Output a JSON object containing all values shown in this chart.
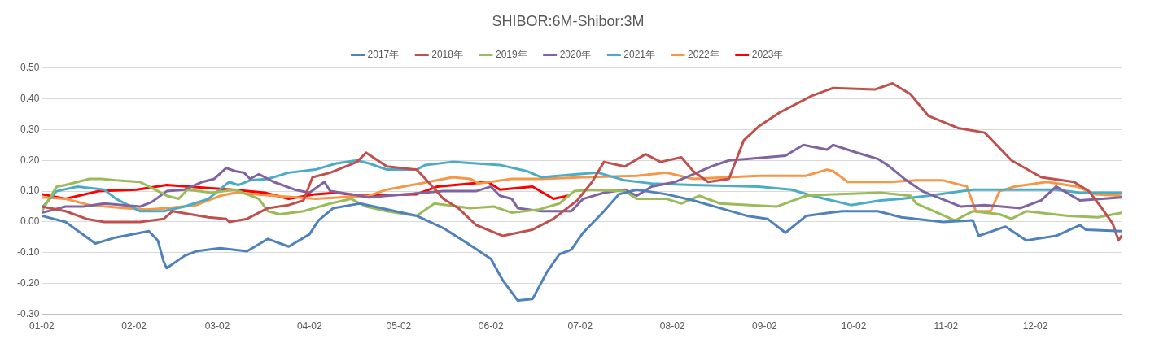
{
  "chart_data": {
    "type": "line",
    "title": "SHIBOR:6M-Shibor:3M",
    "legend": "top",
    "grid": "y",
    "marker": "none",
    "line_style": "solid",
    "xlim": [
      "--01-02",
      "--12-31"
    ],
    "xticks": [
      {
        "value": "--01-02",
        "label": "01-02"
      },
      {
        "value": "--02-02",
        "label": "02-02"
      },
      {
        "value": "--03-02",
        "label": "03-02"
      },
      {
        "value": "--04-02",
        "label": "04-02"
      },
      {
        "value": "--05-02",
        "label": "05-02"
      },
      {
        "value": "--06-02",
        "label": "06-02"
      },
      {
        "value": "--07-02",
        "label": "07-02"
      },
      {
        "value": "--08-02",
        "label": "08-02"
      },
      {
        "value": "--09-02",
        "label": "09-02"
      },
      {
        "value": "--10-02",
        "label": "10-02"
      },
      {
        "value": "--11-02",
        "label": "11-02"
      },
      {
        "value": "--12-02",
        "label": "12-02"
      }
    ],
    "ylim": [
      -0.3,
      0.5
    ],
    "yticks": [
      {
        "value": -0.3,
        "label": "-0.30"
      },
      {
        "value": -0.2,
        "label": "-0.20"
      },
      {
        "value": -0.1,
        "label": "-0.10"
      },
      {
        "value": 0,
        "label": "0.00"
      },
      {
        "value": 0.1,
        "label": "0.10"
      },
      {
        "value": 0.2,
        "label": "0.20"
      },
      {
        "value": 0.3,
        "label": "0.30"
      },
      {
        "value": 0.4,
        "label": "0.40"
      },
      {
        "value": 0.5,
        "label": "0.50"
      }
    ],
    "series": [
      {
        "name": "2017年",
        "color": "#4f81bd",
        "x": [
          "--01-02",
          "--01-10",
          "--01-20",
          "--01-27",
          "--02-07",
          "--02-10",
          "--02-12",
          "--02-13",
          "--02-19",
          "--02-23",
          "--03-03",
          "--03-12",
          "--03-19",
          "--03-26",
          "--04-02",
          "--04-05",
          "--04-10",
          "--04-16",
          "--04-19",
          "--05-08",
          "--05-17",
          "--05-26",
          "--06-02",
          "--06-06",
          "--06-11",
          "--06-16",
          "--06-21",
          "--06-25",
          "--06-29",
          "--07-03",
          "--07-10",
          "--07-15",
          "--07-21",
          "--07-31",
          "--08-09",
          "--08-18",
          "--08-27",
          "--09-03",
          "--09-09",
          "--09-16",
          "--09-28",
          "--10-10",
          "--10-18",
          "--11-01",
          "--11-11",
          "--11-13",
          "--11-22",
          "--11-29",
          "--12-09",
          "--12-17",
          "--12-19",
          "--12-31"
        ],
        "values": [
          0.02,
          0.0,
          -0.07,
          -0.05,
          -0.03,
          -0.06,
          -0.13,
          -0.15,
          -0.11,
          -0.095,
          -0.085,
          -0.095,
          -0.055,
          -0.08,
          -0.04,
          0.005,
          0.045,
          0.055,
          0.06,
          0.02,
          -0.02,
          -0.075,
          -0.12,
          -0.19,
          -0.255,
          -0.25,
          -0.16,
          -0.105,
          -0.09,
          -0.035,
          0.035,
          0.09,
          0.105,
          0.09,
          0.07,
          0.045,
          0.02,
          0.01,
          -0.035,
          0.02,
          0.035,
          0.035,
          0.015,
          0.0,
          0.005,
          -0.045,
          -0.015,
          -0.06,
          -0.045,
          -0.01,
          -0.025,
          -0.03
        ]
      },
      {
        "name": "2018年",
        "color": "#c0504d",
        "x": [
          "--01-02",
          "--01-10",
          "--01-17",
          "--01-23",
          "--02-04",
          "--02-12",
          "--02-15",
          "--02-27",
          "--03-05",
          "--03-06",
          "--03-12",
          "--03-19",
          "--03-26",
          "--03-31",
          "--04-03",
          "--04-09",
          "--04-18",
          "--04-21",
          "--04-28",
          "--05-08",
          "--05-11",
          "--05-17",
          "--05-22",
          "--05-28",
          "--06-06",
          "--06-16",
          "--06-23",
          "--07-01",
          "--07-06",
          "--07-10",
          "--07-17",
          "--07-24",
          "--07-29",
          "--08-05",
          "--08-09",
          "--08-14",
          "--08-21",
          "--08-26",
          "--08-31",
          "--09-07",
          "--09-18",
          "--09-25",
          "--10-09",
          "--10-15",
          "--10-21",
          "--10-27",
          "--11-06",
          "--11-15",
          "--11-24",
          "--12-04",
          "--12-15",
          "--12-20",
          "--12-24",
          "--12-28",
          "--12-30",
          "--12-31"
        ],
        "values": [
          0.05,
          0.035,
          0.01,
          0.0,
          0.0,
          0.01,
          0.035,
          0.015,
          0.01,
          0.0,
          0.01,
          0.045,
          0.055,
          0.07,
          0.145,
          0.16,
          0.195,
          0.225,
          0.18,
          0.17,
          0.14,
          0.075,
          0.045,
          -0.01,
          -0.045,
          -0.025,
          0.01,
          0.07,
          0.13,
          0.195,
          0.18,
          0.22,
          0.195,
          0.21,
          0.165,
          0.13,
          0.14,
          0.265,
          0.31,
          0.355,
          0.41,
          0.435,
          0.43,
          0.45,
          0.415,
          0.345,
          0.305,
          0.29,
          0.2,
          0.145,
          0.13,
          0.1,
          0.05,
          -0.005,
          -0.06,
          -0.045
        ]
      },
      {
        "name": "2019年",
        "color": "#9bbb59",
        "x": [
          "--01-02",
          "--01-07",
          "--01-10",
          "--01-18",
          "--01-22",
          "--01-27",
          "--02-04",
          "--02-09",
          "--02-13",
          "--02-17",
          "--02-20",
          "--02-28",
          "--03-08",
          "--03-16",
          "--03-19",
          "--03-23",
          "--03-31",
          "--04-09",
          "--04-16",
          "--04-21",
          "--04-28",
          "--05-08",
          "--05-14",
          "--05-26",
          "--06-03",
          "--06-09",
          "--06-18",
          "--06-25",
          "--06-30",
          "--07-06",
          "--07-17",
          "--07-21",
          "--07-31",
          "--08-05",
          "--08-11",
          "--08-18",
          "--08-28",
          "--09-06",
          "--09-16",
          "--09-25",
          "--10-11",
          "--10-21",
          "--10-23",
          "--11-05",
          "--11-11",
          "--11-20",
          "--11-24",
          "--11-29",
          "--12-13",
          "--12-23",
          "--12-31"
        ],
        "values": [
          0.035,
          0.115,
          0.12,
          0.14,
          0.14,
          0.135,
          0.13,
          0.105,
          0.085,
          0.075,
          0.105,
          0.095,
          0.105,
          0.075,
          0.035,
          0.025,
          0.035,
          0.06,
          0.075,
          0.05,
          0.035,
          0.02,
          0.06,
          0.045,
          0.05,
          0.03,
          0.04,
          0.06,
          0.1,
          0.105,
          0.1,
          0.075,
          0.075,
          0.06,
          0.085,
          0.06,
          0.055,
          0.05,
          0.085,
          0.09,
          0.095,
          0.085,
          0.06,
          0.005,
          0.035,
          0.025,
          0.01,
          0.035,
          0.02,
          0.015,
          0.03
        ]
      },
      {
        "name": "2020年",
        "color": "#8064a2",
        "x": [
          "--01-02",
          "--01-10",
          "--01-16",
          "--01-23",
          "--02-04",
          "--02-08",
          "--02-13",
          "--02-19",
          "--02-25",
          "--03-01",
          "--03-05",
          "--03-08",
          "--03-11",
          "--03-13",
          "--03-16",
          "--03-21",
          "--03-28",
          "--04-02",
          "--04-07",
          "--04-09",
          "--04-16",
          "--04-22",
          "--04-28",
          "--05-17",
          "--05-28",
          "--06-02",
          "--06-05",
          "--06-09",
          "--06-11",
          "--06-19",
          "--06-29",
          "--07-03",
          "--07-10",
          "--07-17",
          "--07-21",
          "--07-26",
          "--08-03",
          "--08-09",
          "--08-15",
          "--08-21",
          "--08-28",
          "--09-09",
          "--09-15",
          "--09-23",
          "--09-25",
          "--10-03",
          "--10-10",
          "--10-14",
          "--10-19",
          "--10-25",
          "--11-07",
          "--11-15",
          "--11-27",
          "--12-04",
          "--12-09",
          "--12-17",
          "--12-31"
        ],
        "values": [
          0.03,
          0.05,
          0.05,
          0.06,
          0.05,
          0.065,
          0.1,
          0.105,
          0.13,
          0.14,
          0.175,
          0.165,
          0.16,
          0.14,
          0.155,
          0.13,
          0.105,
          0.095,
          0.13,
          0.1,
          0.09,
          0.08,
          0.085,
          0.1,
          0.1,
          0.115,
          0.085,
          0.075,
          0.045,
          0.035,
          0.035,
          0.075,
          0.095,
          0.105,
          0.085,
          0.115,
          0.13,
          0.155,
          0.18,
          0.2,
          0.205,
          0.215,
          0.25,
          0.235,
          0.25,
          0.225,
          0.205,
          0.18,
          0.14,
          0.1,
          0.05,
          0.055,
          0.045,
          0.07,
          0.115,
          0.07,
          0.08
        ]
      },
      {
        "name": "2021年",
        "color": "#4bacc6",
        "x": [
          "--01-02",
          "--01-07",
          "--01-14",
          "--01-23",
          "--01-27",
          "--02-04",
          "--02-12",
          "--02-19",
          "--02-27",
          "--03-06",
          "--03-09",
          "--03-13",
          "--03-19",
          "--03-26",
          "--04-04",
          "--04-11",
          "--04-18",
          "--04-22",
          "--04-28",
          "--05-08",
          "--05-11",
          "--05-20",
          "--06-05",
          "--06-14",
          "--06-19",
          "--07-01",
          "--07-08",
          "--07-17",
          "--07-26",
          "--08-09",
          "--08-31",
          "--09-11",
          "--09-18",
          "--10-01",
          "--10-11",
          "--10-18",
          "--10-27",
          "--11-11",
          "--11-24",
          "--12-09",
          "--12-17",
          "--12-31"
        ],
        "values": [
          0.045,
          0.1,
          0.115,
          0.105,
          0.075,
          0.035,
          0.035,
          0.05,
          0.075,
          0.13,
          0.12,
          0.135,
          0.14,
          0.16,
          0.17,
          0.19,
          0.2,
          0.19,
          0.17,
          0.17,
          0.185,
          0.195,
          0.185,
          0.165,
          0.145,
          0.155,
          0.16,
          0.135,
          0.125,
          0.12,
          0.115,
          0.105,
          0.085,
          0.055,
          0.07,
          0.075,
          0.085,
          0.105,
          0.105,
          0.105,
          0.095,
          0.095
        ]
      },
      {
        "name": "2022年",
        "color": "#f79646",
        "x": [
          "--01-02",
          "--01-10",
          "--01-18",
          "--01-30",
          "--02-06",
          "--02-13",
          "--02-23",
          "--03-03",
          "--03-08",
          "--03-21",
          "--04-04",
          "--04-22",
          "--04-28",
          "--05-12",
          "--05-20",
          "--05-26",
          "--05-29",
          "--06-09",
          "--06-19",
          "--07-03",
          "--07-21",
          "--07-31",
          "--08-09",
          "--08-31",
          "--09-16",
          "--09-23",
          "--09-25",
          "--09-30",
          "--10-14",
          "--10-23",
          "--11-01",
          "--11-09",
          "--11-12",
          "--11-17",
          "--11-20",
          "--11-25",
          "--12-06",
          "--12-16",
          "--12-22",
          "--12-31"
        ],
        "values": [
          0.08,
          0.075,
          0.055,
          0.045,
          0.04,
          0.045,
          0.055,
          0.085,
          0.095,
          0.085,
          0.075,
          0.085,
          0.105,
          0.13,
          0.145,
          0.14,
          0.125,
          0.14,
          0.14,
          0.145,
          0.15,
          0.16,
          0.14,
          0.15,
          0.15,
          0.17,
          0.165,
          0.13,
          0.13,
          0.135,
          0.135,
          0.115,
          0.035,
          0.035,
          0.1,
          0.115,
          0.13,
          0.115,
          0.09,
          0.085
        ]
      },
      {
        "name": "2023年",
        "color": "#ff0000",
        "x": [
          "--01-02",
          "--01-10",
          "--01-21",
          "--02-03",
          "--02-13",
          "--02-27",
          "--03-07",
          "--03-18",
          "--03-26",
          "--04-04",
          "--04-11",
          "--04-19",
          "--05-08",
          "--05-15",
          "--06-01",
          "--06-05",
          "--06-16",
          "--06-23",
          "--06-28"
        ],
        "values": [
          0.09,
          0.075,
          0.1,
          0.105,
          0.12,
          0.11,
          0.105,
          0.095,
          0.075,
          0.09,
          0.095,
          0.085,
          0.09,
          0.115,
          0.13,
          0.105,
          0.115,
          0.075,
          0.085
        ]
      }
    ]
  }
}
